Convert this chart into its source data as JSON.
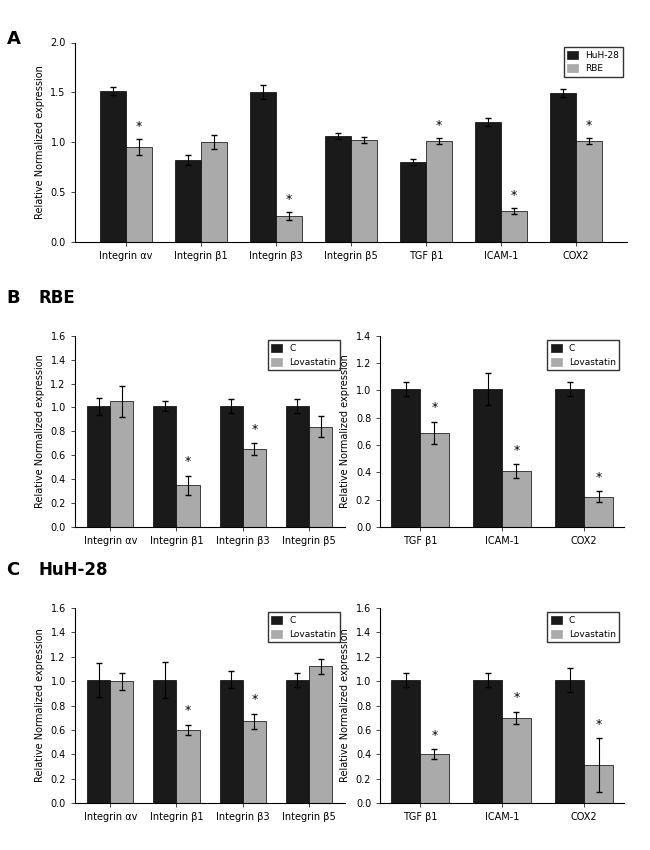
{
  "panel_A": {
    "categories": [
      "Integrin αv",
      "Integrin β1",
      "Integrin β3",
      "Integrin β5",
      "TGF β1",
      "ICAM-1",
      "COX2"
    ],
    "HuH28_values": [
      1.51,
      0.82,
      1.5,
      1.06,
      0.8,
      1.2,
      1.49
    ],
    "HuH28_errors": [
      0.04,
      0.05,
      0.07,
      0.03,
      0.03,
      0.04,
      0.04
    ],
    "RBE_values": [
      0.95,
      1.0,
      0.26,
      1.02,
      1.01,
      0.31,
      1.01
    ],
    "RBE_errors": [
      0.08,
      0.07,
      0.04,
      0.03,
      0.03,
      0.03,
      0.03
    ],
    "RBE_star": [
      true,
      false,
      true,
      false,
      true,
      true,
      true
    ],
    "ylim": [
      0.0,
      2.0
    ],
    "yticks": [
      0.0,
      0.5,
      1.0,
      1.5,
      2.0
    ],
    "ylabel": "Relative Normalized expression",
    "legend_labels": [
      "HuH-28",
      "RBE"
    ],
    "bar_color_dark": "#1a1a1a",
    "bar_color_light": "#aaaaaa"
  },
  "panel_B_left": {
    "categories": [
      "Integrin αv",
      "Integrin β1",
      "Integrin β3",
      "Integrin β5"
    ],
    "C_values": [
      1.01,
      1.01,
      1.01,
      1.01
    ],
    "C_errors": [
      0.07,
      0.04,
      0.06,
      0.06
    ],
    "Lov_values": [
      1.05,
      0.35,
      0.65,
      0.84
    ],
    "Lov_errors": [
      0.13,
      0.08,
      0.05,
      0.09
    ],
    "Lov_star": [
      false,
      true,
      true,
      false
    ],
    "ylim": [
      0.0,
      1.6
    ],
    "yticks": [
      0.0,
      0.2,
      0.4,
      0.6,
      0.8,
      1.0,
      1.2,
      1.4,
      1.6
    ],
    "ylabel": "Relative Normalized expression",
    "legend_labels": [
      "C",
      "Lovastatin"
    ],
    "bar_color_dark": "#1a1a1a",
    "bar_color_light": "#aaaaaa"
  },
  "panel_B_right": {
    "categories": [
      "TGF β1",
      "ICAM-1",
      "COX2"
    ],
    "C_values": [
      1.01,
      1.01,
      1.01
    ],
    "C_errors": [
      0.05,
      0.12,
      0.05
    ],
    "Lov_values": [
      0.69,
      0.41,
      0.22
    ],
    "Lov_errors": [
      0.08,
      0.05,
      0.04
    ],
    "Lov_star": [
      true,
      true,
      true
    ],
    "ylim": [
      0.0,
      1.4
    ],
    "yticks": [
      0.0,
      0.2,
      0.4,
      0.6,
      0.8,
      1.0,
      1.2,
      1.4
    ],
    "ylabel": "Relative Normalized expression",
    "legend_labels": [
      "C",
      "Lovastatin"
    ],
    "bar_color_dark": "#1a1a1a",
    "bar_color_light": "#aaaaaa"
  },
  "panel_C_left": {
    "categories": [
      "Integrin αv",
      "Integrin β1",
      "Integrin β3",
      "Integrin β5"
    ],
    "C_values": [
      1.01,
      1.01,
      1.01,
      1.01
    ],
    "C_errors": [
      0.14,
      0.15,
      0.07,
      0.06
    ],
    "Lov_values": [
      1.0,
      0.6,
      0.67,
      1.12
    ],
    "Lov_errors": [
      0.07,
      0.04,
      0.06,
      0.06
    ],
    "Lov_star": [
      false,
      true,
      true,
      false
    ],
    "ylim": [
      0.0,
      1.6
    ],
    "yticks": [
      0.0,
      0.2,
      0.4,
      0.6,
      0.8,
      1.0,
      1.2,
      1.4,
      1.6
    ],
    "ylabel": "Relative Normalized expression",
    "legend_labels": [
      "C",
      "Lovastatin"
    ],
    "bar_color_dark": "#1a1a1a",
    "bar_color_light": "#aaaaaa"
  },
  "panel_C_right": {
    "categories": [
      "TGF β1",
      "ICAM-1",
      "COX2"
    ],
    "C_values": [
      1.01,
      1.01,
      1.01
    ],
    "C_errors": [
      0.06,
      0.06,
      0.1
    ],
    "Lov_values": [
      0.4,
      0.7,
      0.31
    ],
    "Lov_errors": [
      0.04,
      0.05,
      0.22
    ],
    "Lov_star": [
      true,
      true,
      true
    ],
    "ylim": [
      0.0,
      1.6
    ],
    "yticks": [
      0.0,
      0.2,
      0.4,
      0.6,
      0.8,
      1.0,
      1.2,
      1.4,
      1.6
    ],
    "ylabel": "Relative Normalized expression",
    "legend_labels": [
      "C",
      "Lovastatin"
    ],
    "bar_color_dark": "#1a1a1a",
    "bar_color_light": "#aaaaaa"
  },
  "background_color": "#ffffff"
}
